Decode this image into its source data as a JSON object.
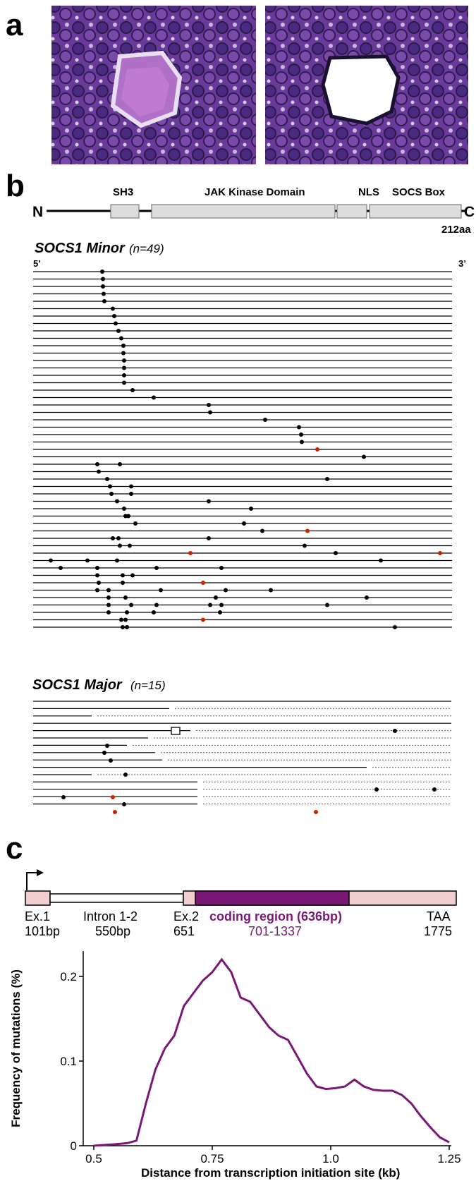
{
  "panel_a": {
    "letter": "a"
  },
  "panel_b": {
    "letter": "b",
    "protein": {
      "n_term": "N",
      "c_term": "C",
      "length": "212aa",
      "domains": [
        "SH3",
        "JAK Kinase Domain",
        "NLS",
        "SOCS Box"
      ]
    },
    "minor": {
      "title": "SOCS1 Minor",
      "n": "(n=49)",
      "five_prime": "5’",
      "three_prime": "3’"
    },
    "major": {
      "title": "SOCS1 Major",
      "n": "(n=15)"
    }
  },
  "panel_c": {
    "letter": "c",
    "gene": {
      "ex1": "Ex.1",
      "ex1_len": "101bp",
      "intron": "Intron 1-2",
      "intron_len": "550bp",
      "ex2": "Ex.2",
      "ex2_pos": "651",
      "coding": "coding region (636bp)",
      "coding_pos": "701-1337",
      "taa": "TAA",
      "taa_pos": "1775"
    },
    "colors": {
      "exon": "#f2cfcf",
      "coding": "#7a1878",
      "mutation_red": "#cc2200"
    }
  },
  "chart_data": {
    "type": "line",
    "xlabel": "Distance from transcription initiation site (kb)",
    "ylabel": "Frequency of mutations (%)",
    "xlim": [
      0.5,
      1.25
    ],
    "ylim": [
      0,
      0.23
    ],
    "xticks": [
      "0.5",
      "0.75",
      "1.0",
      "1.25"
    ],
    "yticks": [
      "0",
      "0.1",
      "0.2"
    ],
    "x": [
      0.5,
      0.55,
      0.57,
      0.59,
      0.61,
      0.63,
      0.65,
      0.67,
      0.69,
      0.71,
      0.73,
      0.75,
      0.77,
      0.79,
      0.81,
      0.83,
      0.85,
      0.87,
      0.89,
      0.91,
      0.93,
      0.95,
      0.97,
      0.99,
      1.01,
      1.03,
      1.05,
      1.07,
      1.09,
      1.11,
      1.13,
      1.15,
      1.17,
      1.19,
      1.21,
      1.23,
      1.25
    ],
    "y": [
      0.0,
      0.002,
      0.003,
      0.006,
      0.05,
      0.09,
      0.115,
      0.13,
      0.165,
      0.18,
      0.195,
      0.205,
      0.22,
      0.205,
      0.175,
      0.17,
      0.155,
      0.14,
      0.13,
      0.125,
      0.105,
      0.085,
      0.07,
      0.067,
      0.068,
      0.07,
      0.078,
      0.07,
      0.066,
      0.065,
      0.065,
      0.06,
      0.05,
      0.035,
      0.022,
      0.01,
      0.004
    ]
  }
}
